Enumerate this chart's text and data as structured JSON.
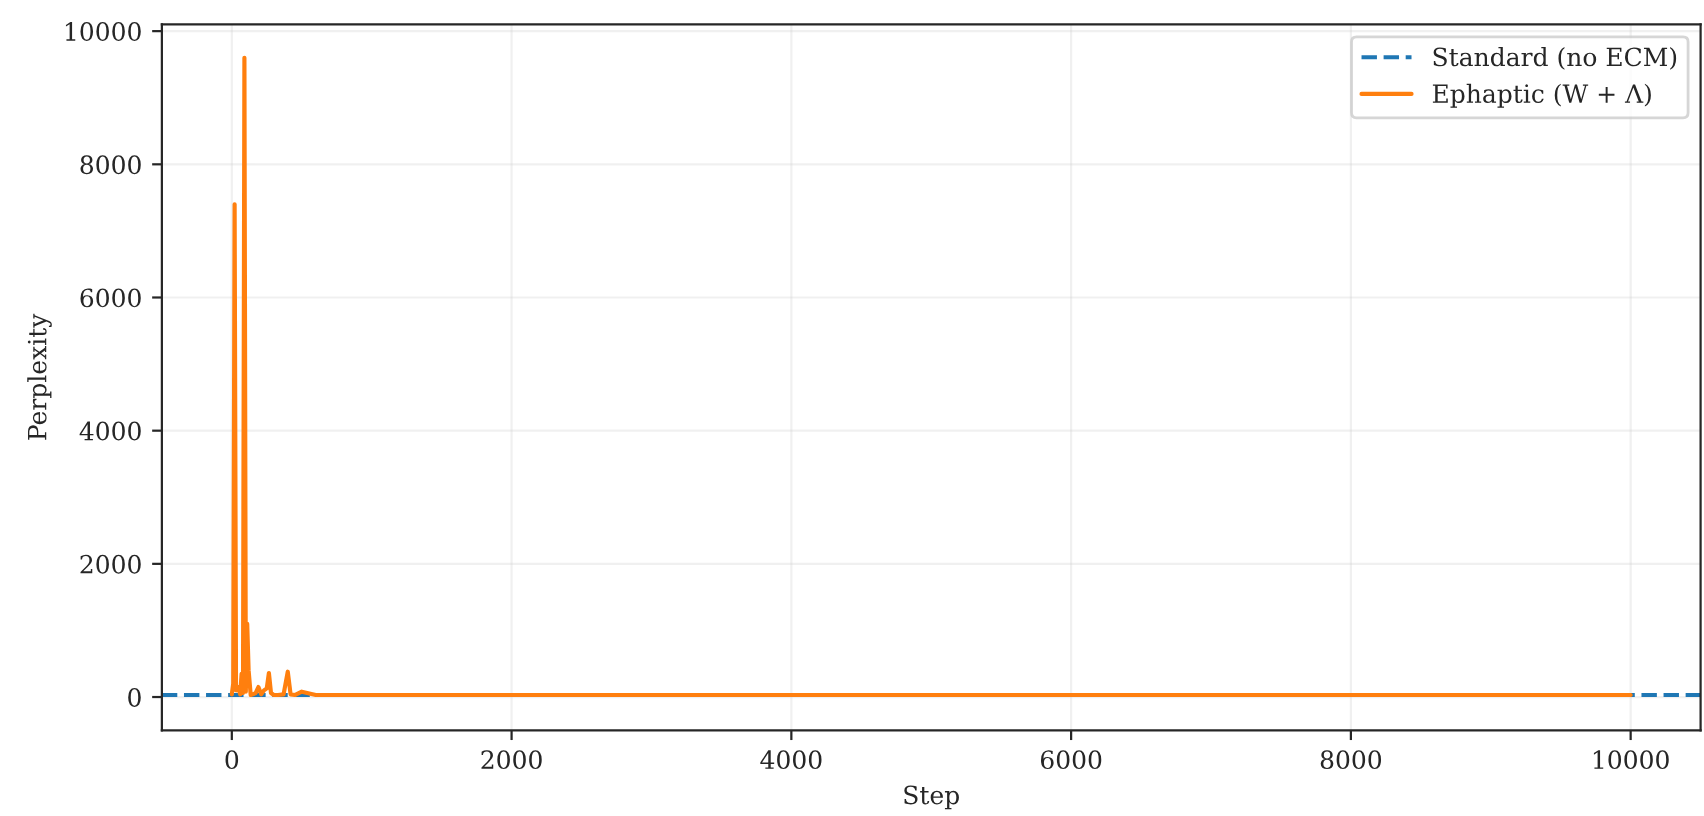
{
  "chart_data": {
    "type": "line",
    "xlabel": "Step",
    "ylabel": "Perplexity",
    "xlim": [
      -500,
      10500
    ],
    "ylim": [
      -500,
      10100
    ],
    "xticks": [
      0,
      2000,
      4000,
      6000,
      8000,
      10000
    ],
    "yticks": [
      0,
      2000,
      4000,
      6000,
      8000,
      10000
    ],
    "grid": true,
    "legend": "top right",
    "ref_lines": [
      {
        "axis": "y",
        "value": 30,
        "label": "Standard (no ECM)",
        "color": "#1f77b4",
        "line_style": "dashed"
      }
    ],
    "series": [
      {
        "name": "Ephaptic (W + Λ)",
        "color": "#ff7f0e",
        "line_style": "solid",
        "x": [
          0,
          10,
          20,
          30,
          45,
          60,
          70,
          80,
          90,
          100,
          110,
          120,
          135,
          150,
          170,
          190,
          210,
          230,
          250,
          265,
          280,
          300,
          330,
          370,
          400,
          420,
          450,
          500,
          600,
          1000,
          2000,
          4000,
          6000,
          8000,
          10000
        ],
        "values": [
          40,
          200,
          7400,
          100,
          150,
          40,
          350,
          60,
          9600,
          80,
          1100,
          400,
          30,
          40,
          60,
          150,
          40,
          100,
          130,
          360,
          60,
          30,
          30,
          40,
          380,
          40,
          30,
          80,
          30,
          30,
          30,
          30,
          30,
          30,
          30
        ]
      }
    ]
  }
}
